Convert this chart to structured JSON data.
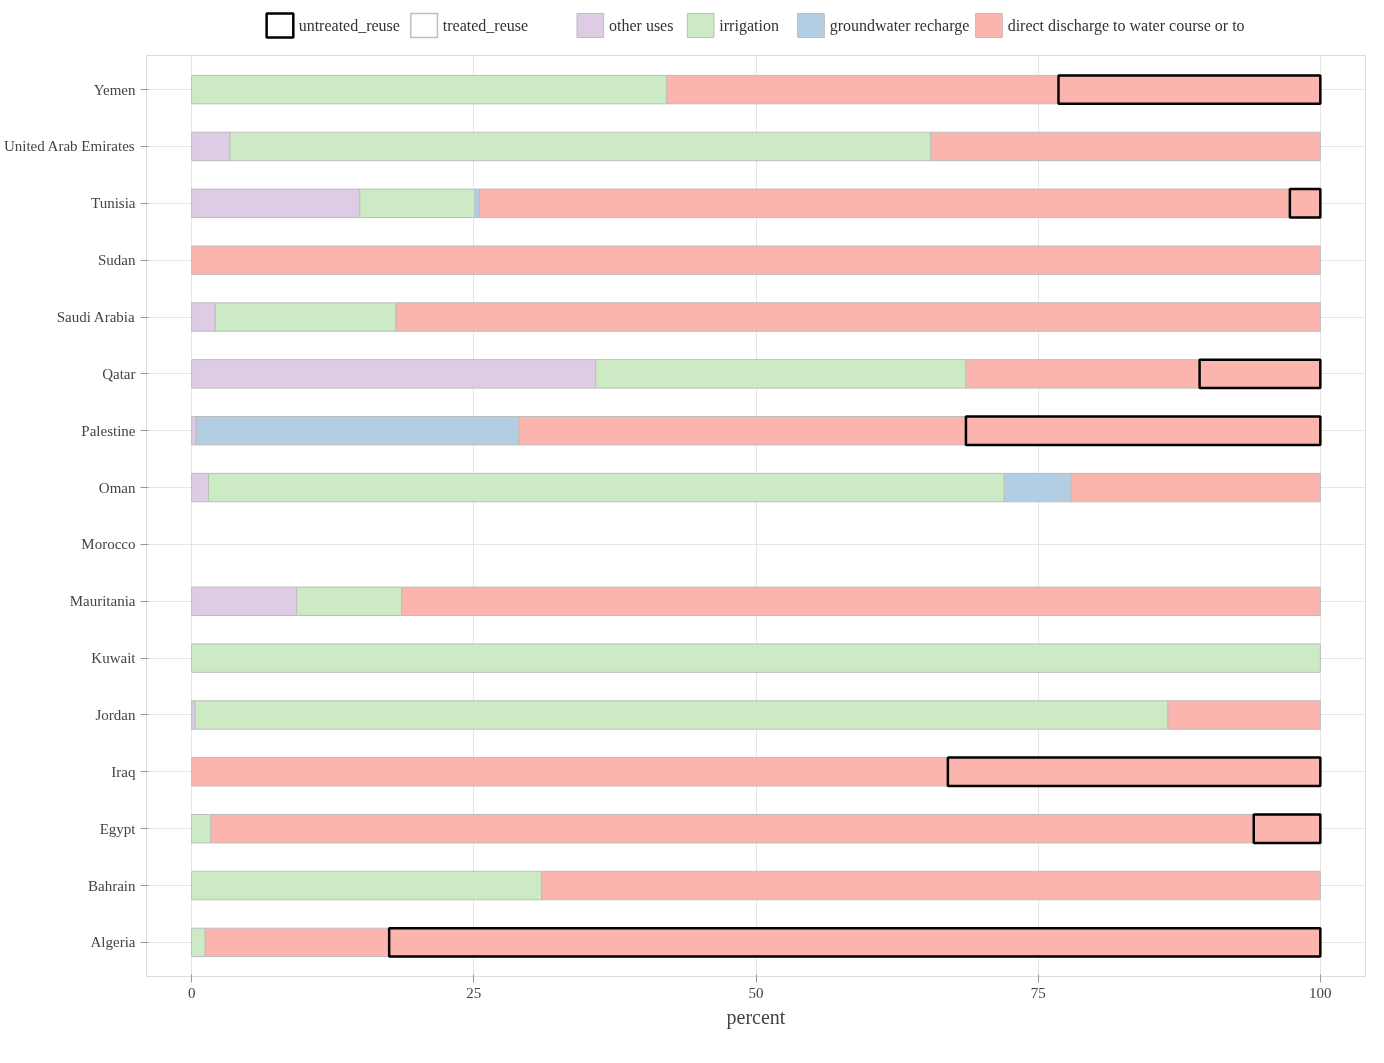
{
  "chart_data": {
    "type": "bar",
    "orientation": "horizontal",
    "stacked": true,
    "xlabel": "percent",
    "categories": [
      "Yemen",
      "United Arab Emirates",
      "Tunisia",
      "Sudan",
      "Saudi Arabia",
      "Qatar",
      "Palestine",
      "Oman",
      "Morocco",
      "Mauritania",
      "Kuwait",
      "Jordan",
      "Iraq",
      "Egypt",
      "Bahrain",
      "Algeria"
    ],
    "series": [
      {
        "name": "other uses",
        "color": "#decbe4",
        "values": [
          null,
          3.4,
          14.9,
          null,
          2.1,
          35.8,
          0.4,
          1.5,
          null,
          9.3,
          null,
          0.3,
          null,
          null,
          null,
          null
        ]
      },
      {
        "name": "irrigation",
        "color": "#ccebc5",
        "values": [
          42.1,
          62.1,
          10.2,
          null,
          16.0,
          32.8,
          null,
          70.5,
          null,
          9.3,
          100,
          86.2,
          null,
          1.7,
          31.0,
          1.2
        ]
      },
      {
        "name": "groundwater recharge",
        "color": "#b3cde3",
        "values": [
          null,
          null,
          0.4,
          null,
          null,
          null,
          28.6,
          5.9,
          null,
          null,
          null,
          null,
          null,
          null,
          null,
          null
        ]
      },
      {
        "name": "direct discharge to water course or to",
        "color": "#fbb4ae",
        "values": [
          34.7,
          34.5,
          71.8,
          100,
          81.9,
          20.7,
          39.6,
          22.1,
          null,
          81.4,
          null,
          13.5,
          67.0,
          92.4,
          69.0,
          16.3
        ]
      },
      {
        "name": "treated_reuse",
        "color": "#bdbdbd",
        "values": [
          null,
          null,
          null,
          null,
          null,
          null,
          null,
          null,
          null,
          null,
          null,
          null,
          null,
          null,
          null,
          null
        ]
      },
      {
        "name": "untreated_reuse",
        "color": "#000000",
        "values": [
          23.2,
          null,
          2.7,
          null,
          null,
          10.7,
          31.4,
          null,
          null,
          null,
          null,
          null,
          33.0,
          5.9,
          null,
          82.5
        ]
      }
    ],
    "xlim": [
      -4,
      104
    ],
    "xticks": [
      0,
      25,
      50,
      75,
      100
    ],
    "grid": true,
    "legend": "top"
  }
}
